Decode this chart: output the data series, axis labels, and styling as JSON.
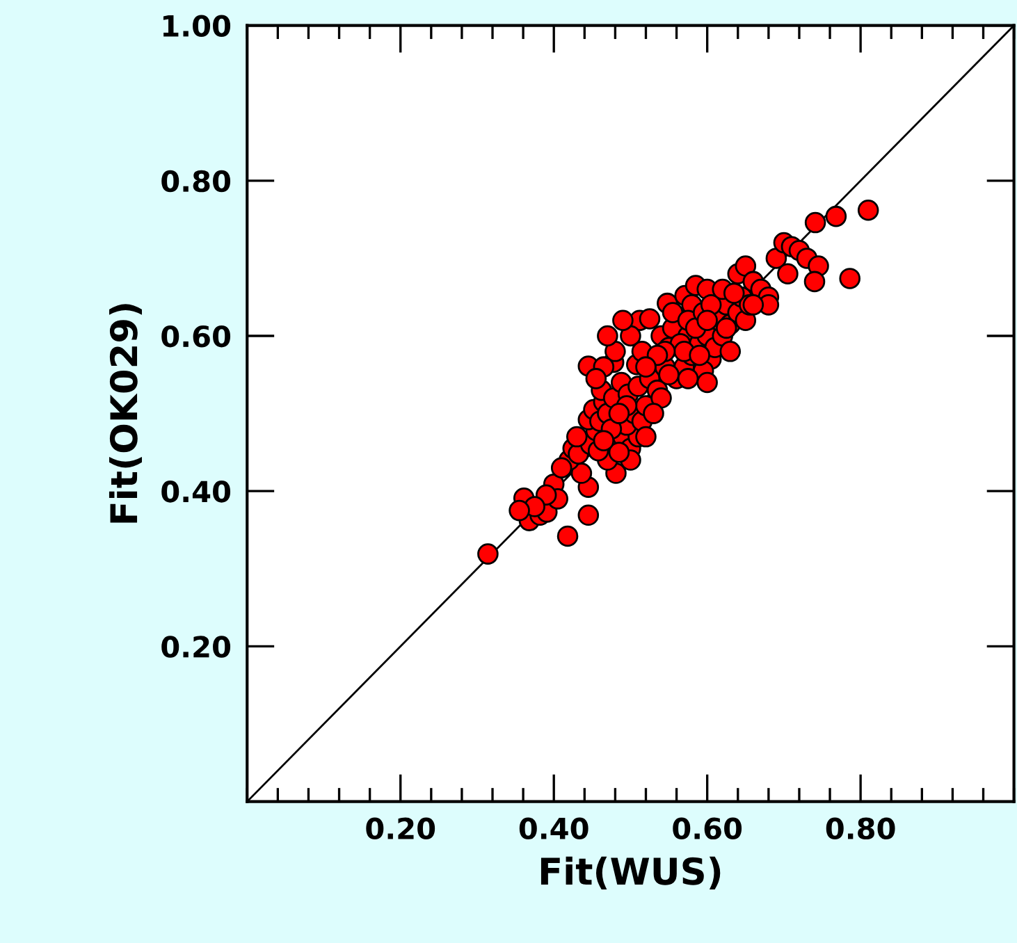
{
  "chart_data": {
    "type": "scatter",
    "xlabel": "Fit(WUS)",
    "ylabel": "Fit(OK029)",
    "xlim": [
      0,
      1
    ],
    "ylim": [
      0,
      1
    ],
    "xticks": [
      {
        "value": 0.2,
        "label": "0.20"
      },
      {
        "value": 0.4,
        "label": "0.40"
      },
      {
        "value": 0.6,
        "label": "0.60"
      },
      {
        "value": 0.8,
        "label": "0.80"
      }
    ],
    "yticks": [
      {
        "value": 0.2,
        "label": "0.20"
      },
      {
        "value": 0.4,
        "label": "0.40"
      },
      {
        "value": 0.6,
        "label": "0.60"
      },
      {
        "value": 0.8,
        "label": "0.80"
      },
      {
        "value": 1.0,
        "label": "1.00"
      }
    ],
    "series": [
      {
        "type": "line",
        "color": "#000000",
        "marker": "none",
        "x": [
          0,
          1
        ],
        "values": [
          0,
          1
        ]
      },
      {
        "color": "#ff0000",
        "marker": "circle",
        "x": [
          0.314,
          0.361,
          0.368,
          0.382,
          0.391,
          0.4,
          0.418,
          0.445,
          0.445,
          0.436,
          0.42,
          0.425,
          0.432,
          0.448,
          0.455,
          0.445,
          0.452,
          0.46,
          0.465,
          0.47,
          0.462,
          0.478,
          0.445,
          0.478,
          0.508,
          0.481,
          0.47,
          0.458,
          0.49,
          0.5,
          0.51,
          0.495,
          0.505,
          0.515,
          0.52,
          0.488,
          0.497,
          0.51,
          0.525,
          0.535,
          0.512,
          0.525,
          0.548,
          0.571,
          0.585,
          0.54,
          0.55,
          0.555,
          0.575,
          0.58,
          0.545,
          0.56,
          0.57,
          0.58,
          0.59,
          0.6,
          0.605,
          0.595,
          0.61,
          0.62,
          0.615,
          0.625,
          0.6,
          0.63,
          0.64,
          0.65,
          0.645,
          0.655,
          0.64,
          0.65,
          0.66,
          0.67,
          0.68,
          0.69,
          0.7,
          0.71,
          0.72,
          0.705,
          0.73,
          0.741,
          0.768,
          0.81,
          0.786,
          0.745,
          0.74,
          0.68,
          0.63,
          0.54,
          0.53,
          0.52,
          0.5,
          0.485,
          0.475,
          0.465,
          0.43,
          0.41,
          0.405,
          0.39,
          0.375,
          0.355,
          0.515,
          0.5,
          0.49,
          0.48,
          0.465,
          0.455,
          0.47,
          0.495,
          0.485,
          0.555,
          0.565,
          0.575,
          0.585,
          0.595,
          0.605,
          0.62,
          0.635,
          0.6,
          0.57,
          0.545,
          0.535,
          0.52,
          0.55,
          0.575,
          0.59,
          0.625,
          0.66,
          0.6
        ],
        "values": [
          0.319,
          0.391,
          0.362,
          0.369,
          0.373,
          0.409,
          0.342,
          0.369,
          0.405,
          0.423,
          0.44,
          0.455,
          0.448,
          0.46,
          0.478,
          0.492,
          0.505,
          0.49,
          0.515,
          0.5,
          0.53,
          0.52,
          0.561,
          0.566,
          0.563,
          0.423,
          0.44,
          0.452,
          0.47,
          0.455,
          0.47,
          0.485,
          0.5,
          0.49,
          0.51,
          0.54,
          0.525,
          0.535,
          0.545,
          0.53,
          0.62,
          0.622,
          0.642,
          0.652,
          0.665,
          0.6,
          0.585,
          0.61,
          0.6,
          0.64,
          0.56,
          0.545,
          0.56,
          0.575,
          0.59,
          0.6,
          0.57,
          0.555,
          0.585,
          0.6,
          0.62,
          0.64,
          0.66,
          0.615,
          0.63,
          0.62,
          0.65,
          0.64,
          0.68,
          0.69,
          0.67,
          0.66,
          0.65,
          0.7,
          0.72,
          0.715,
          0.71,
          0.68,
          0.7,
          0.746,
          0.754,
          0.762,
          0.674,
          0.69,
          0.67,
          0.64,
          0.58,
          0.52,
          0.5,
          0.47,
          0.44,
          0.45,
          0.48,
          0.465,
          0.47,
          0.43,
          0.39,
          0.395,
          0.38,
          0.375,
          0.58,
          0.6,
          0.62,
          0.58,
          0.56,
          0.545,
          0.6,
          0.51,
          0.5,
          0.63,
          0.59,
          0.62,
          0.61,
          0.63,
          0.64,
          0.66,
          0.655,
          0.62,
          0.58,
          0.58,
          0.575,
          0.56,
          0.55,
          0.545,
          0.575,
          0.61,
          0.64,
          0.54
        ]
      }
    ]
  }
}
